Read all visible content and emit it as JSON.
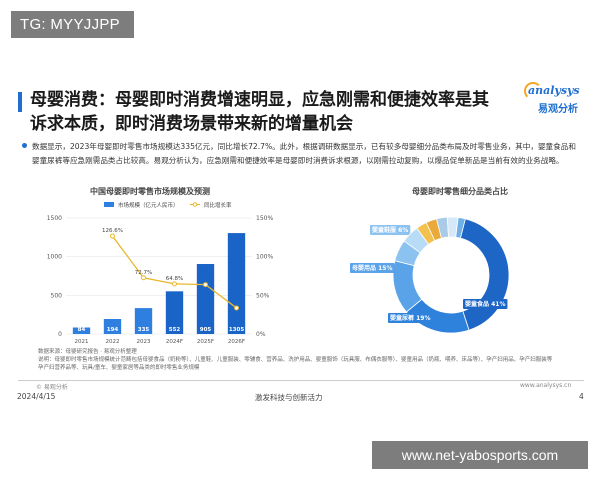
{
  "watermark_top_left": "TG: MYYJJPP",
  "watermark_bottom_right": "www.net-yabosports.com",
  "slide": {
    "title_line1": "母婴消费：母婴即时消费增速明显，应急刚需和便捷效率是其",
    "title_line2": "诉求本质，即时消费场景带来新的增量机会",
    "bullet": "数据显示，2023年母婴即时零售市场规模达335亿元，同比增长72.7%。此外，根据调研数据显示，已有较多母婴细分品类布局及时零售业务，其中，婴童食品和婴童尿裤等应急刚需品类占比较高。易观分析认为，应急刚需和便捷效率是母婴即时消费诉求根源，以刚需拉动复购，以爆品促单新品是当前有效的业务战略。"
  },
  "logo": {
    "text_en": "analysys",
    "text_cn": "易观分析"
  },
  "colors": {
    "accent": "#1f6fd0",
    "bar": "#2f7fe0",
    "bar_forecast": "#1a64c8",
    "line": "#e8b730"
  },
  "chart_data": [
    {
      "type": "bar",
      "title": "中国母婴即时零售市场规模及预测",
      "categories": [
        "2021",
        "2022",
        "2023",
        "2024F",
        "2025F",
        "2026F"
      ],
      "series": [
        {
          "name": "市场规模（亿元人民币）",
          "type": "bar",
          "values": [
            84,
            194,
            335,
            552,
            905,
            1305
          ]
        },
        {
          "name": "同比增长率",
          "type": "line",
          "axis": "right",
          "values": [
            null,
            126.6,
            72.7,
            64.8,
            63.8,
            33.7
          ]
        }
      ],
      "ylim": [
        0,
        1500
      ],
      "yticks": [
        "0",
        "500",
        "1000",
        "1500"
      ],
      "y2lim": [
        0,
        150
      ],
      "y2ticks": [
        "0%",
        "50%",
        "100%",
        "150%"
      ],
      "line_labels": [
        "",
        "126.6%",
        "72.7%",
        "64.8%",
        "",
        ""
      ],
      "legend_position": "top"
    },
    {
      "type": "pie",
      "title": "母婴即时零售细分品类占比",
      "donut": true,
      "slices": [
        {
          "label": "婴童食品 41%",
          "value": 41,
          "color": "#1e66c6"
        },
        {
          "label": "婴童尿裤 19%",
          "value": 19,
          "color": "#2f82dc"
        },
        {
          "label": "母婴用品 15%",
          "value": 15,
          "color": "#5aa3e8"
        },
        {
          "label": "婴童鞋服 6%",
          "value": 6,
          "color": "#8cc2f0"
        },
        {
          "label": "",
          "value": 5,
          "color": "#b8dcf5"
        },
        {
          "label": "",
          "value": 3,
          "color": "#f2c14e"
        },
        {
          "label": "",
          "value": 3,
          "color": "#e9a93b"
        },
        {
          "label": "",
          "value": 3,
          "color": "#a9cbe8"
        },
        {
          "label": "",
          "value": 3,
          "color": "#d6e9f8"
        },
        {
          "label": "",
          "value": 2,
          "color": "#6fb1e6"
        }
      ]
    }
  ],
  "source": {
    "line1": "数据来源：母婴研究报告 · 易观分析整理",
    "line2": "说明：母婴即时零售市场规模统计范畴包括母婴食品（奶粉等）、儿童鞋、儿童服装、零辅食、营养品、洗护用品、婴童服饰（玩具服、布偶衣服等）、婴童用品（奶瓶、喂养、床品等）、孕产妇用品、孕产妇服装等",
    "line3": "孕产妇营养品等、玩具/童车、婴童家居等品类的即时零售业务规模"
  },
  "footer": {
    "logo": "© 易观分析",
    "site": "www.analysys.cn",
    "date": "2024/4/15",
    "slogan": "激发科技与创新活力",
    "page": "4"
  }
}
